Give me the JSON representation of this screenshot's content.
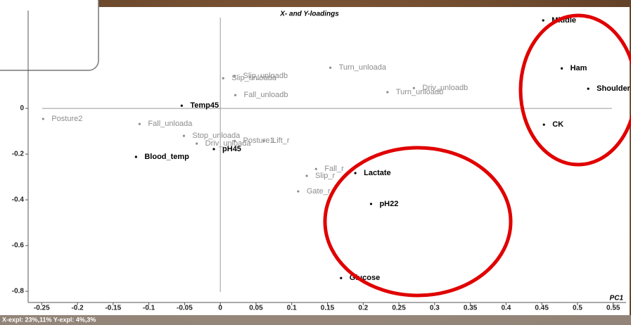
{
  "chart_data": {
    "type": "scatter",
    "title": "X- and Y-loadings",
    "xlabel": "PC1",
    "footer": "X-expl: 23%,11%  Y-expl: 4%,3%",
    "xlim": [
      -0.269,
      0.568
    ],
    "ylim": [
      -0.849,
      0.428
    ],
    "xticks": [
      -0.25,
      -0.2,
      -0.15,
      -0.1,
      -0.05,
      0,
      0.05,
      0.1,
      0.15,
      0.2,
      0.25,
      0.3,
      0.35,
      0.4,
      0.45,
      0.5,
      0.55
    ],
    "yticks": [
      0,
      -0.2,
      -0.4,
      -0.6,
      -0.8
    ],
    "series": [
      {
        "color": "#000000",
        "labels": [
          "Middle",
          "Ham",
          "Shoulder",
          "CK",
          "Temp45",
          "Blood_temp",
          "pH45",
          "Lactate",
          "pH22",
          "Glucose"
        ],
        "x": [
          0.452,
          0.478,
          0.515,
          0.453,
          -0.054,
          -0.118,
          -0.009,
          0.189,
          0.211,
          0.169
        ],
        "values": [
          0.385,
          0.175,
          0.086,
          -0.071,
          0.012,
          -0.212,
          -0.178,
          -0.283,
          -0.418,
          -0.742
        ]
      },
      {
        "color": "#8c8c8c",
        "labels": [
          "Turn_unloada",
          "Slip_unloadb",
          "Slip_unloada",
          "Fall_unloadb",
          "Driv_unloadb",
          "Turn_unloadb",
          "Posture2",
          "Fall_unloada",
          "Stop_unloada",
          "Driv_unloada",
          "Posture1",
          "Lift_r",
          "Fall_r",
          "Slip_r",
          "Gate_r"
        ],
        "x": [
          0.154,
          0.02,
          0.004,
          0.021,
          0.271,
          0.234,
          -0.248,
          -0.113,
          -0.051,
          -0.033,
          0.02,
          0.061,
          0.134,
          0.121,
          0.109
        ],
        "values": [
          0.178,
          0.142,
          0.132,
          0.058,
          0.089,
          0.071,
          -0.046,
          -0.068,
          -0.12,
          -0.154,
          -0.142,
          -0.142,
          -0.265,
          -0.295,
          -0.363
        ]
      }
    ]
  }
}
